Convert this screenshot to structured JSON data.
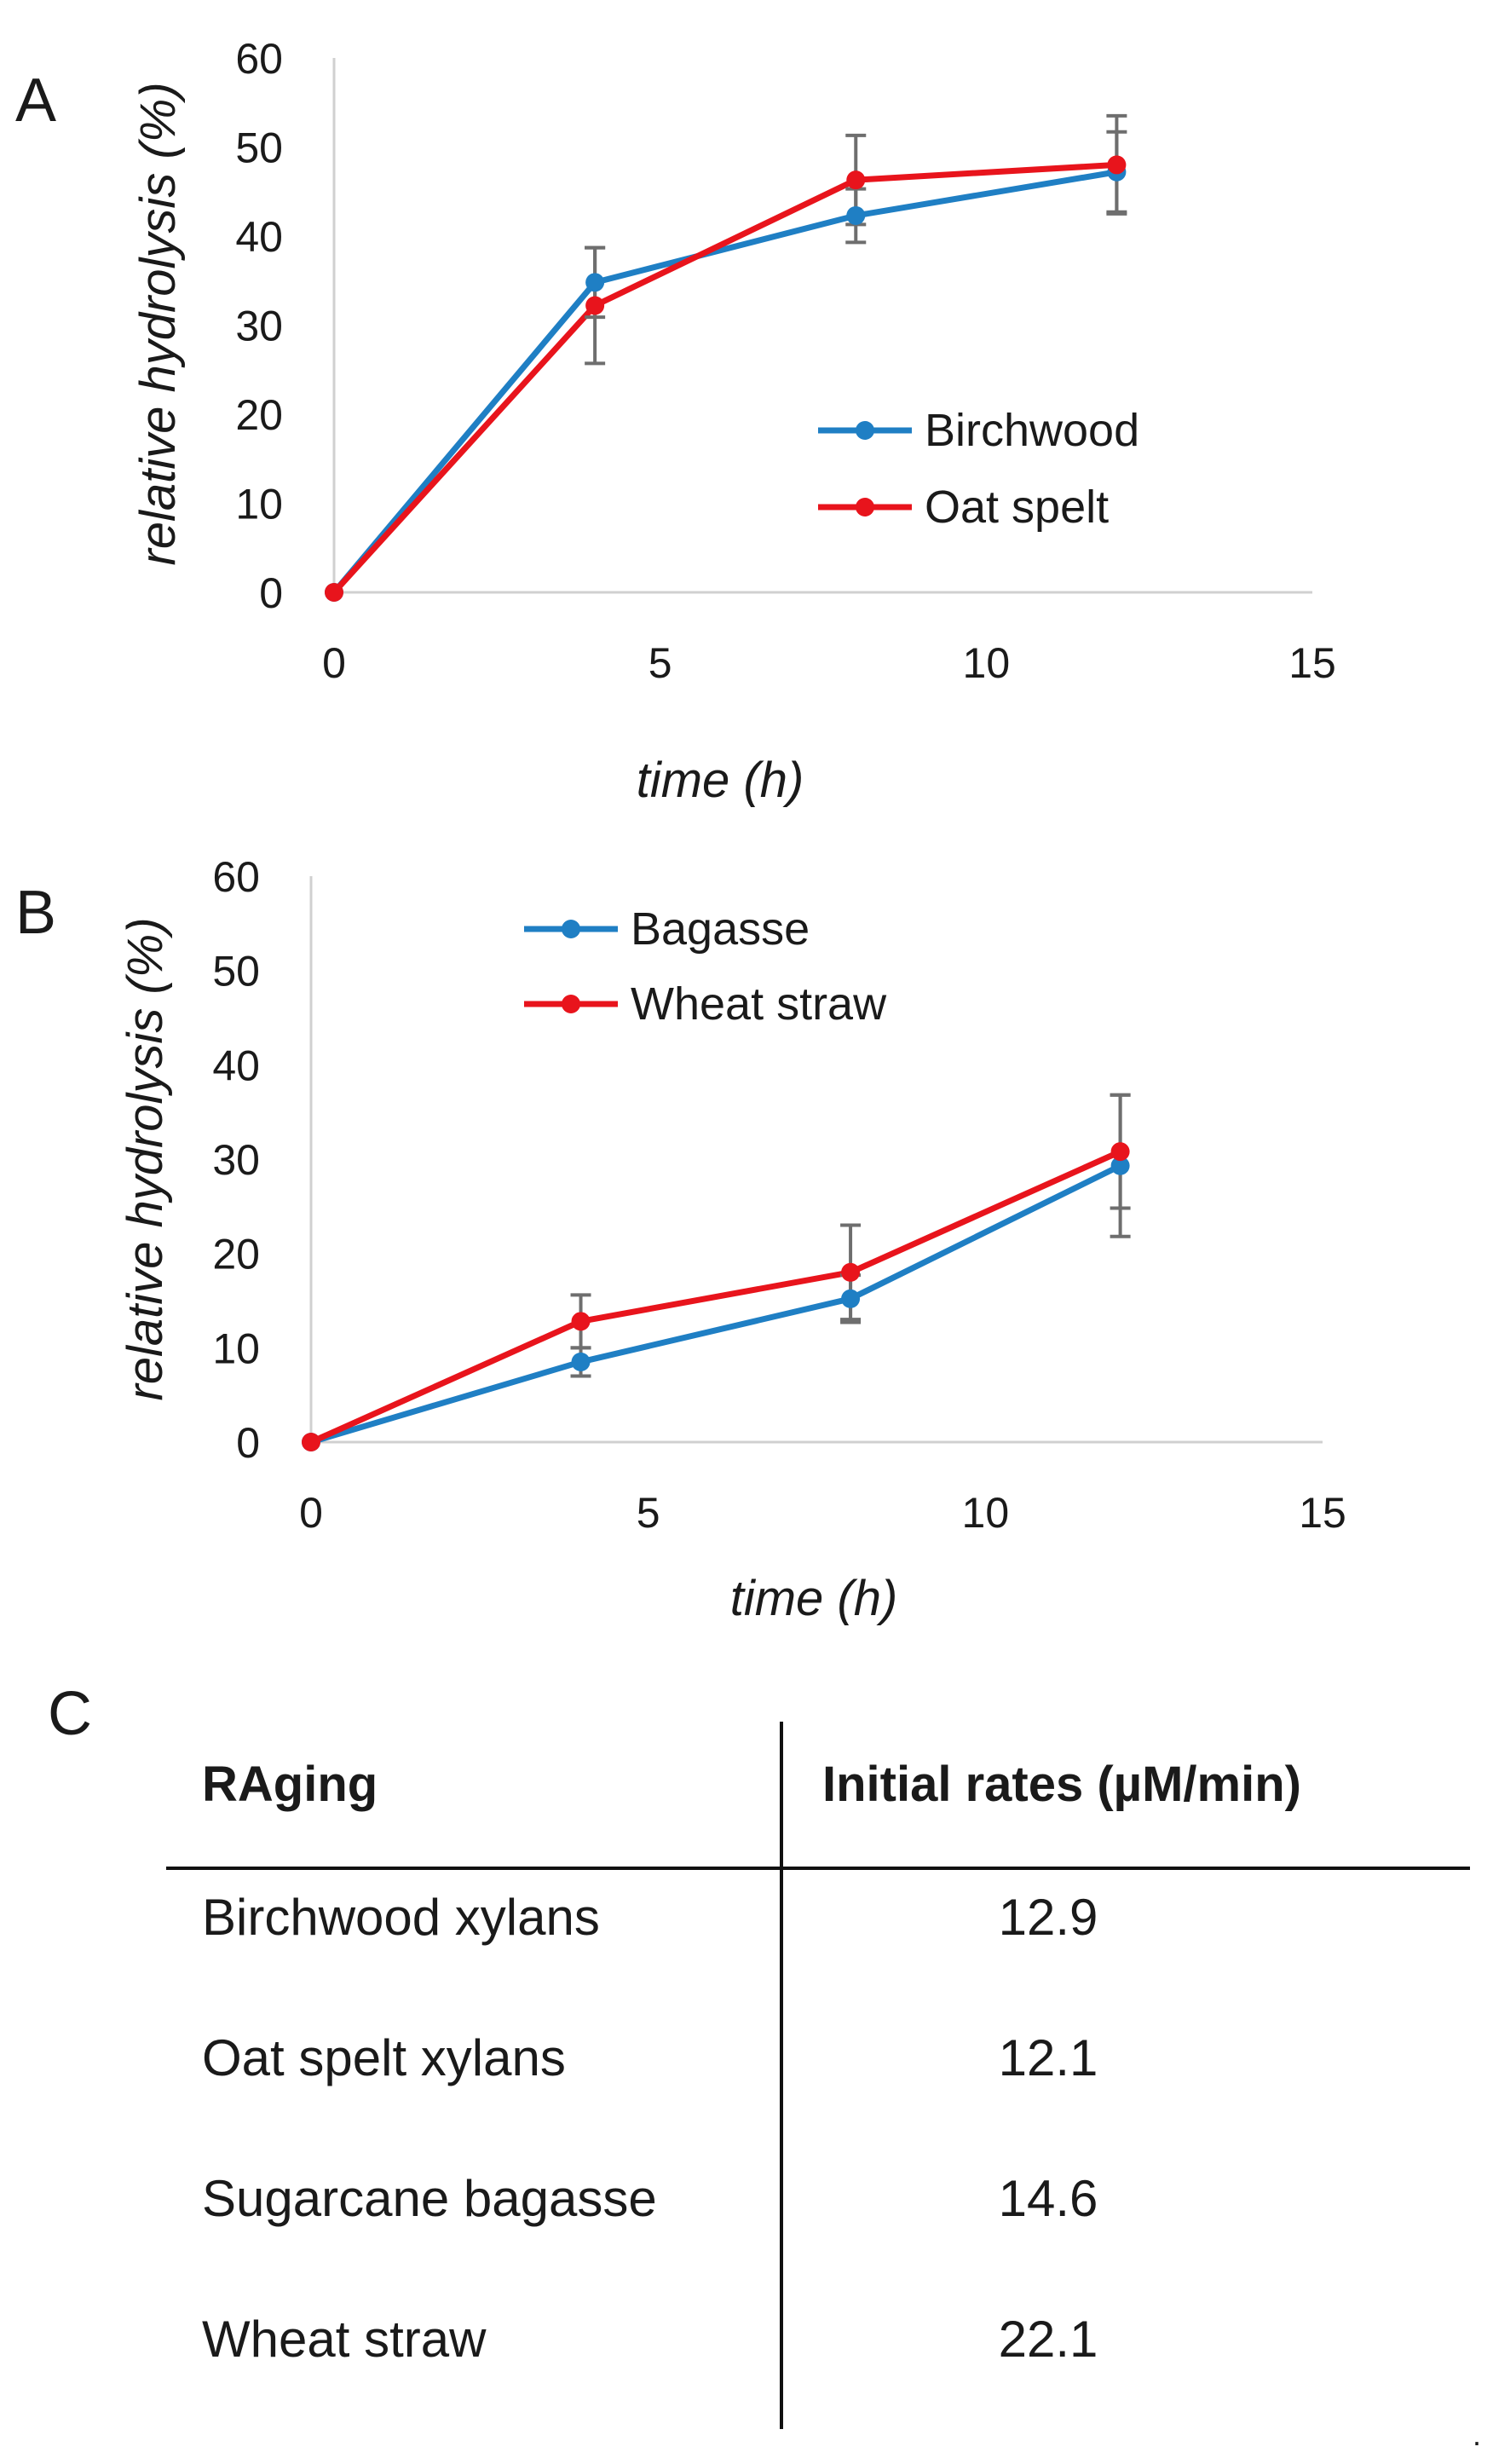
{
  "chart_data": [
    {
      "panel": "A",
      "type": "line",
      "title": "",
      "xlabel": "time (h)",
      "ylabel": "relative hydrolysis (%)",
      "xlim": [
        0,
        15
      ],
      "ylim": [
        0,
        60
      ],
      "xticks": [
        "0",
        "5",
        "10",
        "15"
      ],
      "yticks": [
        "0",
        "10",
        "20",
        "30",
        "40",
        "50",
        "60"
      ],
      "legend_position": "center-right",
      "x": [
        0,
        4,
        8,
        12
      ],
      "series": [
        {
          "name": "Birchwood",
          "color": "#1f7fc4",
          "values": [
            0,
            34.8,
            42.3,
            47.2
          ],
          "errors": [
            0,
            3.9,
            3.0,
            4.5
          ]
        },
        {
          "name": "Oat spelt",
          "color": "#e8141c",
          "values": [
            0,
            32.2,
            46.3,
            48.0
          ],
          "errors": [
            0,
            6.5,
            5.0,
            5.5
          ]
        }
      ]
    },
    {
      "panel": "B",
      "type": "line",
      "title": "",
      "xlabel": "time (h)",
      "ylabel": "relative hydrolysis (%)",
      "xlim": [
        0,
        15
      ],
      "ylim": [
        0,
        60
      ],
      "xticks": [
        "0",
        "5",
        "10",
        "15"
      ],
      "yticks": [
        "0",
        "10",
        "20",
        "30",
        "40",
        "50",
        "60"
      ],
      "legend_position": "top-center",
      "x": [
        0,
        4,
        8,
        12
      ],
      "series": [
        {
          "name": "Bagasse",
          "color": "#1f7fc4",
          "values": [
            0,
            8.5,
            15.2,
            29.3
          ],
          "errors": [
            0,
            1.5,
            2.5,
            7.5
          ]
        },
        {
          "name": "Wheat straw",
          "color": "#e8141c",
          "values": [
            0,
            12.8,
            18.0,
            30.8
          ],
          "errors": [
            0,
            2.8,
            5.0,
            6.0
          ]
        }
      ]
    },
    {
      "panel": "C",
      "type": "table",
      "columns": [
        "RAging",
        "Initial rates (µM/min)"
      ],
      "rows": [
        [
          "Birchwood xylans",
          "12.9"
        ],
        [
          "Oat spelt xylans",
          "12.1"
        ],
        [
          "Sugarcane bagasse",
          "14.6"
        ],
        [
          "Wheat straw",
          "22.1"
        ]
      ]
    }
  ],
  "trailing_mark": "."
}
